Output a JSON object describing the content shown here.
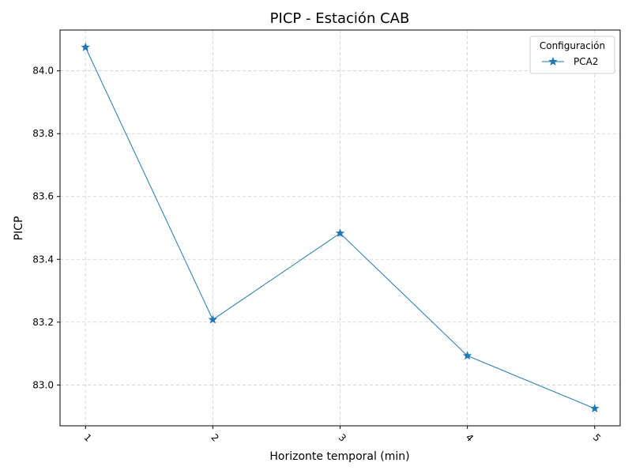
{
  "chart_data": {
    "type": "line",
    "title": "PICP - Estación CAB",
    "xlabel": "Horizonte temporal (min)",
    "ylabel": "PICP",
    "x": [
      1,
      2,
      3,
      4,
      5
    ],
    "x_tick_labels": [
      "1",
      "2",
      "3",
      "4",
      "5"
    ],
    "y_ticks": [
      83.0,
      83.2,
      83.4,
      83.6,
      83.8,
      84.0
    ],
    "y_tick_labels": [
      "83.0",
      "83.2",
      "83.4",
      "83.6",
      "83.8",
      "84.0"
    ],
    "xlim": [
      0.8,
      5.2
    ],
    "ylim": [
      82.87,
      84.13
    ],
    "grid": true,
    "legend": {
      "title": "Configuración",
      "placement": "top-right"
    },
    "series": [
      {
        "name": "PCA2",
        "color": "#1f77b4",
        "marker": "star",
        "values": [
          84.075,
          83.208,
          83.483,
          83.093,
          82.925
        ]
      }
    ]
  }
}
